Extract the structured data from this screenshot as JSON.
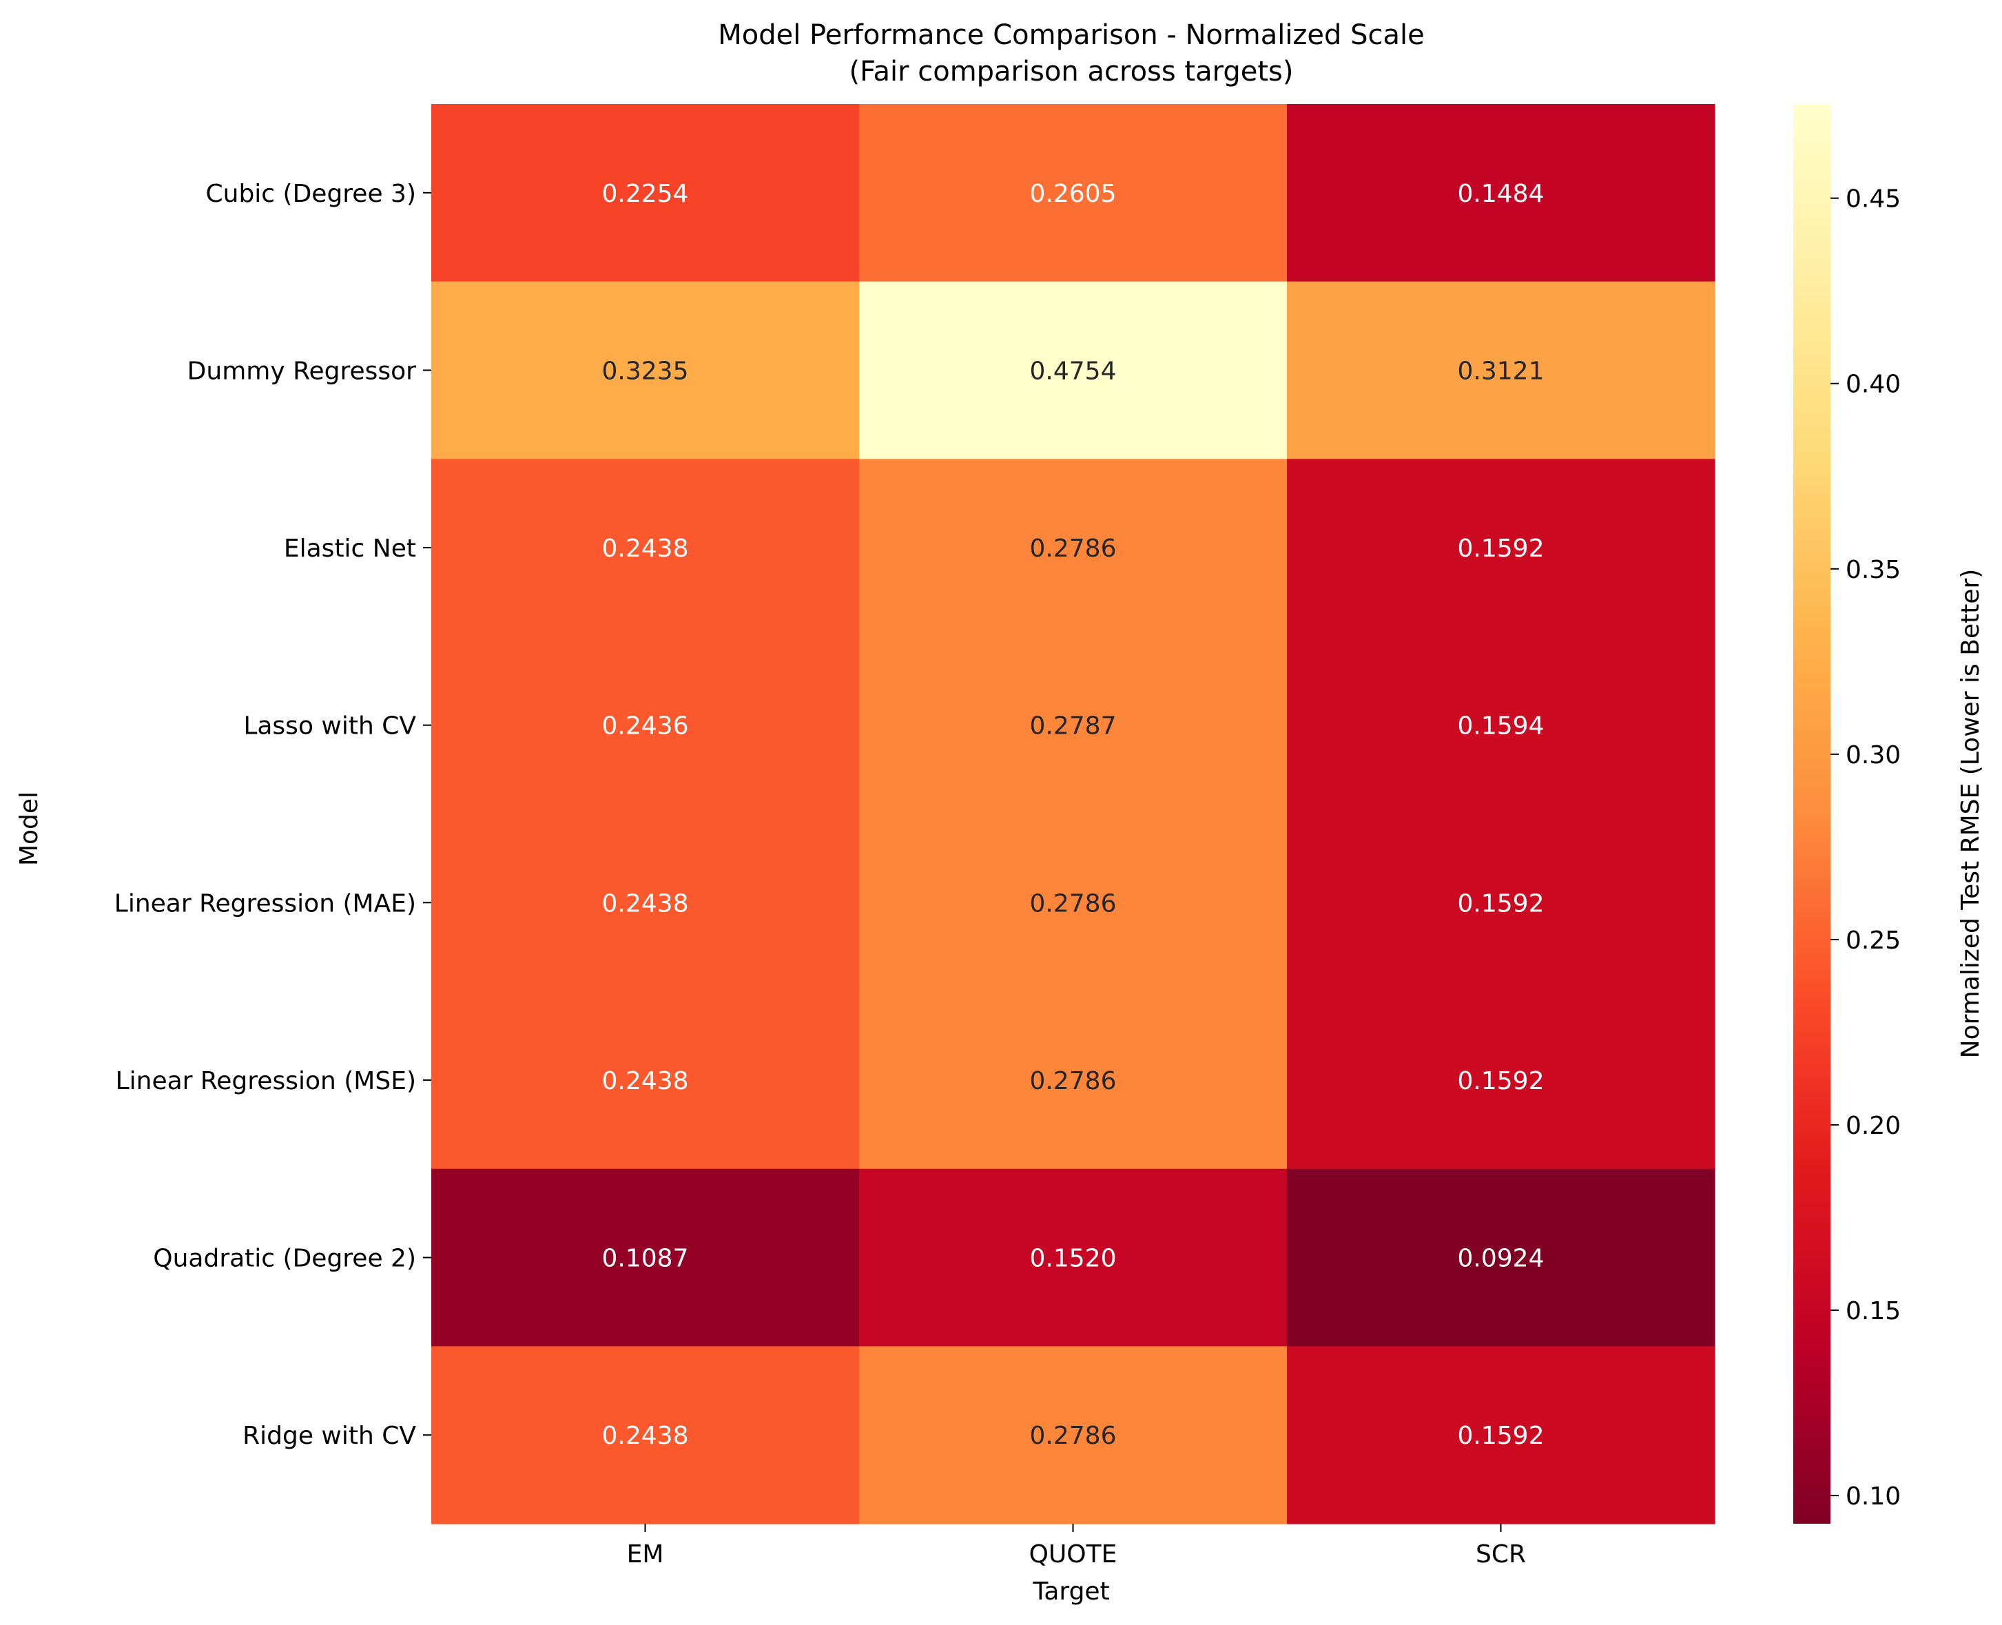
{
  "chart_data": {
    "type": "heatmap",
    "title": "Model Performance Comparison - Normalized Scale",
    "subtitle": "(Fair comparison across targets)",
    "xlabel": "Target",
    "ylabel": "Model",
    "x_categories": [
      "EM",
      "QUOTE",
      "SCR"
    ],
    "y_categories": [
      "Cubic (Degree 3)",
      "Dummy Regressor",
      "Elastic Net",
      "Lasso with CV",
      "Linear Regression (MAE)",
      "Linear Regression (MSE)",
      "Quadratic (Degree 2)",
      "Ridge with CV"
    ],
    "values": [
      [
        0.2254,
        0.2605,
        0.1484
      ],
      [
        0.3235,
        0.4754,
        0.3121
      ],
      [
        0.2438,
        0.2786,
        0.1592
      ],
      [
        0.2436,
        0.2787,
        0.1594
      ],
      [
        0.2438,
        0.2786,
        0.1592
      ],
      [
        0.2438,
        0.2786,
        0.1592
      ],
      [
        0.1087,
        0.152,
        0.0924
      ],
      [
        0.2438,
        0.2786,
        0.1592
      ]
    ],
    "value_labels": [
      [
        "0.2254",
        "0.2605",
        "0.1484"
      ],
      [
        "0.3235",
        "0.4754",
        "0.3121"
      ],
      [
        "0.2438",
        "0.2786",
        "0.1592"
      ],
      [
        "0.2436",
        "0.2787",
        "0.1594"
      ],
      [
        "0.2438",
        "0.2786",
        "0.1592"
      ],
      [
        "0.2438",
        "0.2786",
        "0.1592"
      ],
      [
        "0.1087",
        "0.1520",
        "0.0924"
      ],
      [
        "0.2438",
        "0.2786",
        "0.1592"
      ]
    ],
    "colorbar": {
      "label": "Normalized Test RMSE (Lower is Better)",
      "colormap": "YlOrRd_r",
      "vmin": 0.0924,
      "vmax": 0.4754,
      "ticks": [
        0.1,
        0.15,
        0.2,
        0.25,
        0.3,
        0.35,
        0.4,
        0.45
      ],
      "tick_labels": [
        "0.10",
        "0.15",
        "0.20",
        "0.25",
        "0.30",
        "0.35",
        "0.40",
        "0.45"
      ]
    },
    "colormap_stops": [
      "#800026",
      "#bd0026",
      "#e31a1c",
      "#fc4e2a",
      "#fd8d3c",
      "#feb24c",
      "#fed976",
      "#ffeda0",
      "#ffffcc"
    ],
    "grid": false
  }
}
